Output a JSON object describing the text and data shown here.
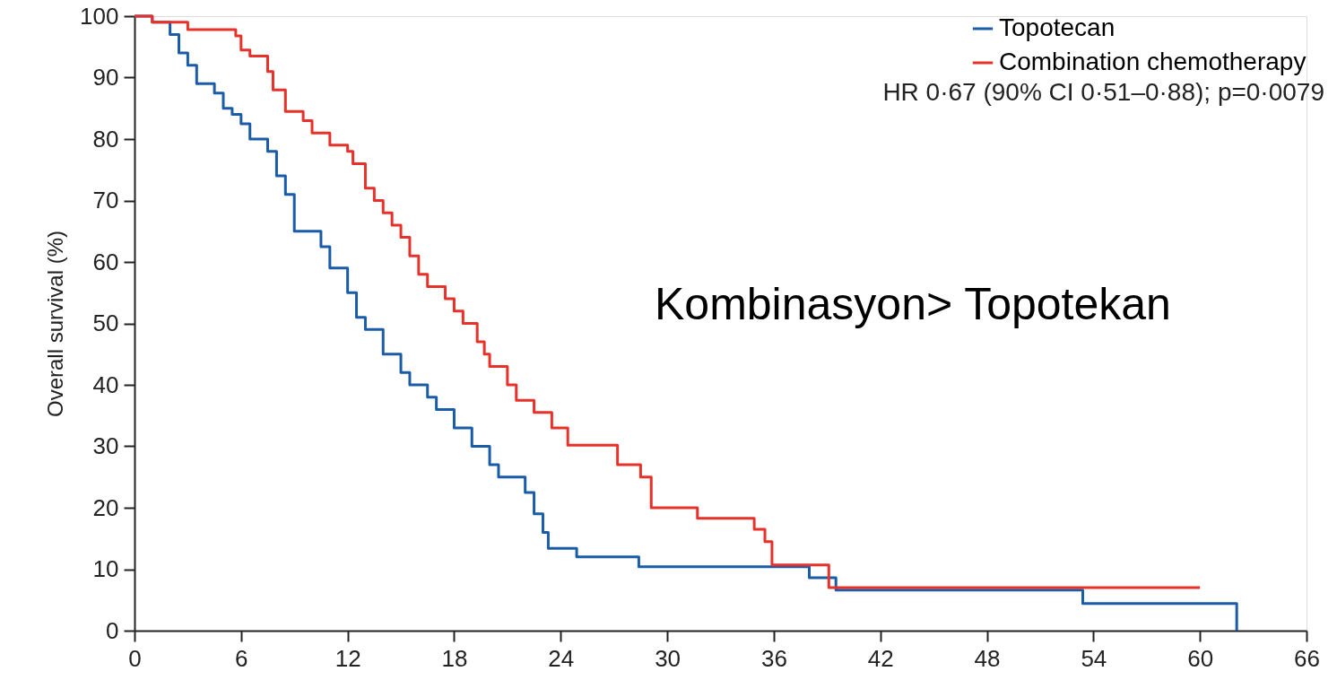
{
  "chart_data": {
    "type": "step",
    "ylabel": "Overall survival (%)",
    "xlim": [
      0,
      66
    ],
    "xticks": [
      0,
      6,
      12,
      18,
      24,
      30,
      36,
      42,
      48,
      54,
      60,
      66
    ],
    "ylim": [
      0,
      100
    ],
    "yticks": [
      0,
      10,
      20,
      30,
      40,
      50,
      60,
      70,
      80,
      90,
      100
    ],
    "grid": false,
    "legend": "top right",
    "marker": "none",
    "line_style": "solid",
    "annotations": [
      "HR 0·67 (90% CI 0·51–0·88); p=0·0079",
      "Kombinasyon> Topotekan"
    ],
    "series": [
      {
        "name": "Topotecan",
        "color": "#1a5ca8",
        "x": [
          0,
          1,
          2.0,
          2.5,
          3,
          3.5,
          4.5,
          5,
          5.5,
          6,
          6.5,
          7.5,
          8,
          8.5,
          9,
          10.5,
          11,
          12,
          12.5,
          13,
          14,
          15,
          15.5,
          16.5,
          17,
          18,
          19,
          20,
          20.5,
          22,
          22.5,
          23,
          23.3,
          24.9,
          28.4,
          38,
          39.5,
          53.4,
          62.07
        ],
        "values": [
          100,
          99,
          97,
          94,
          92,
          89,
          87.5,
          85,
          84,
          82.5,
          80,
          78,
          74,
          71,
          65,
          62.5,
          59,
          55,
          51,
          49,
          45,
          42,
          40,
          38,
          36,
          33,
          30,
          27,
          25,
          22.5,
          19,
          16,
          13.4,
          12,
          10.4,
          8.6,
          6.6,
          4.4,
          0
        ]
      },
      {
        "name": "Combination chemotherapy",
        "color": "#e8312a",
        "x": [
          0,
          1,
          3,
          5.7,
          6,
          6.5,
          7.5,
          7.8,
          8.5,
          9.5,
          10,
          11,
          12,
          12.3,
          13,
          13.5,
          14,
          14.5,
          15,
          15.5,
          16,
          16.5,
          17.5,
          18,
          18.5,
          19.3,
          19.7,
          20,
          21,
          21.5,
          22.5,
          23.5,
          24.4,
          27.2,
          28.5,
          29.1,
          31.7,
          34.9,
          35.5,
          35.9,
          39.1,
          60.0
        ],
        "values": [
          100,
          99,
          97.8,
          96.8,
          94.5,
          93.5,
          91,
          88,
          84.5,
          83,
          81,
          79,
          78,
          76,
          72,
          70,
          68,
          66,
          64,
          61,
          58,
          56,
          54,
          52,
          50,
          47,
          45,
          43,
          40,
          37.5,
          35.5,
          33,
          30.2,
          27,
          25,
          20,
          18.3,
          16.5,
          14.5,
          10.7,
          7.0,
          7.0
        ]
      }
    ]
  }
}
